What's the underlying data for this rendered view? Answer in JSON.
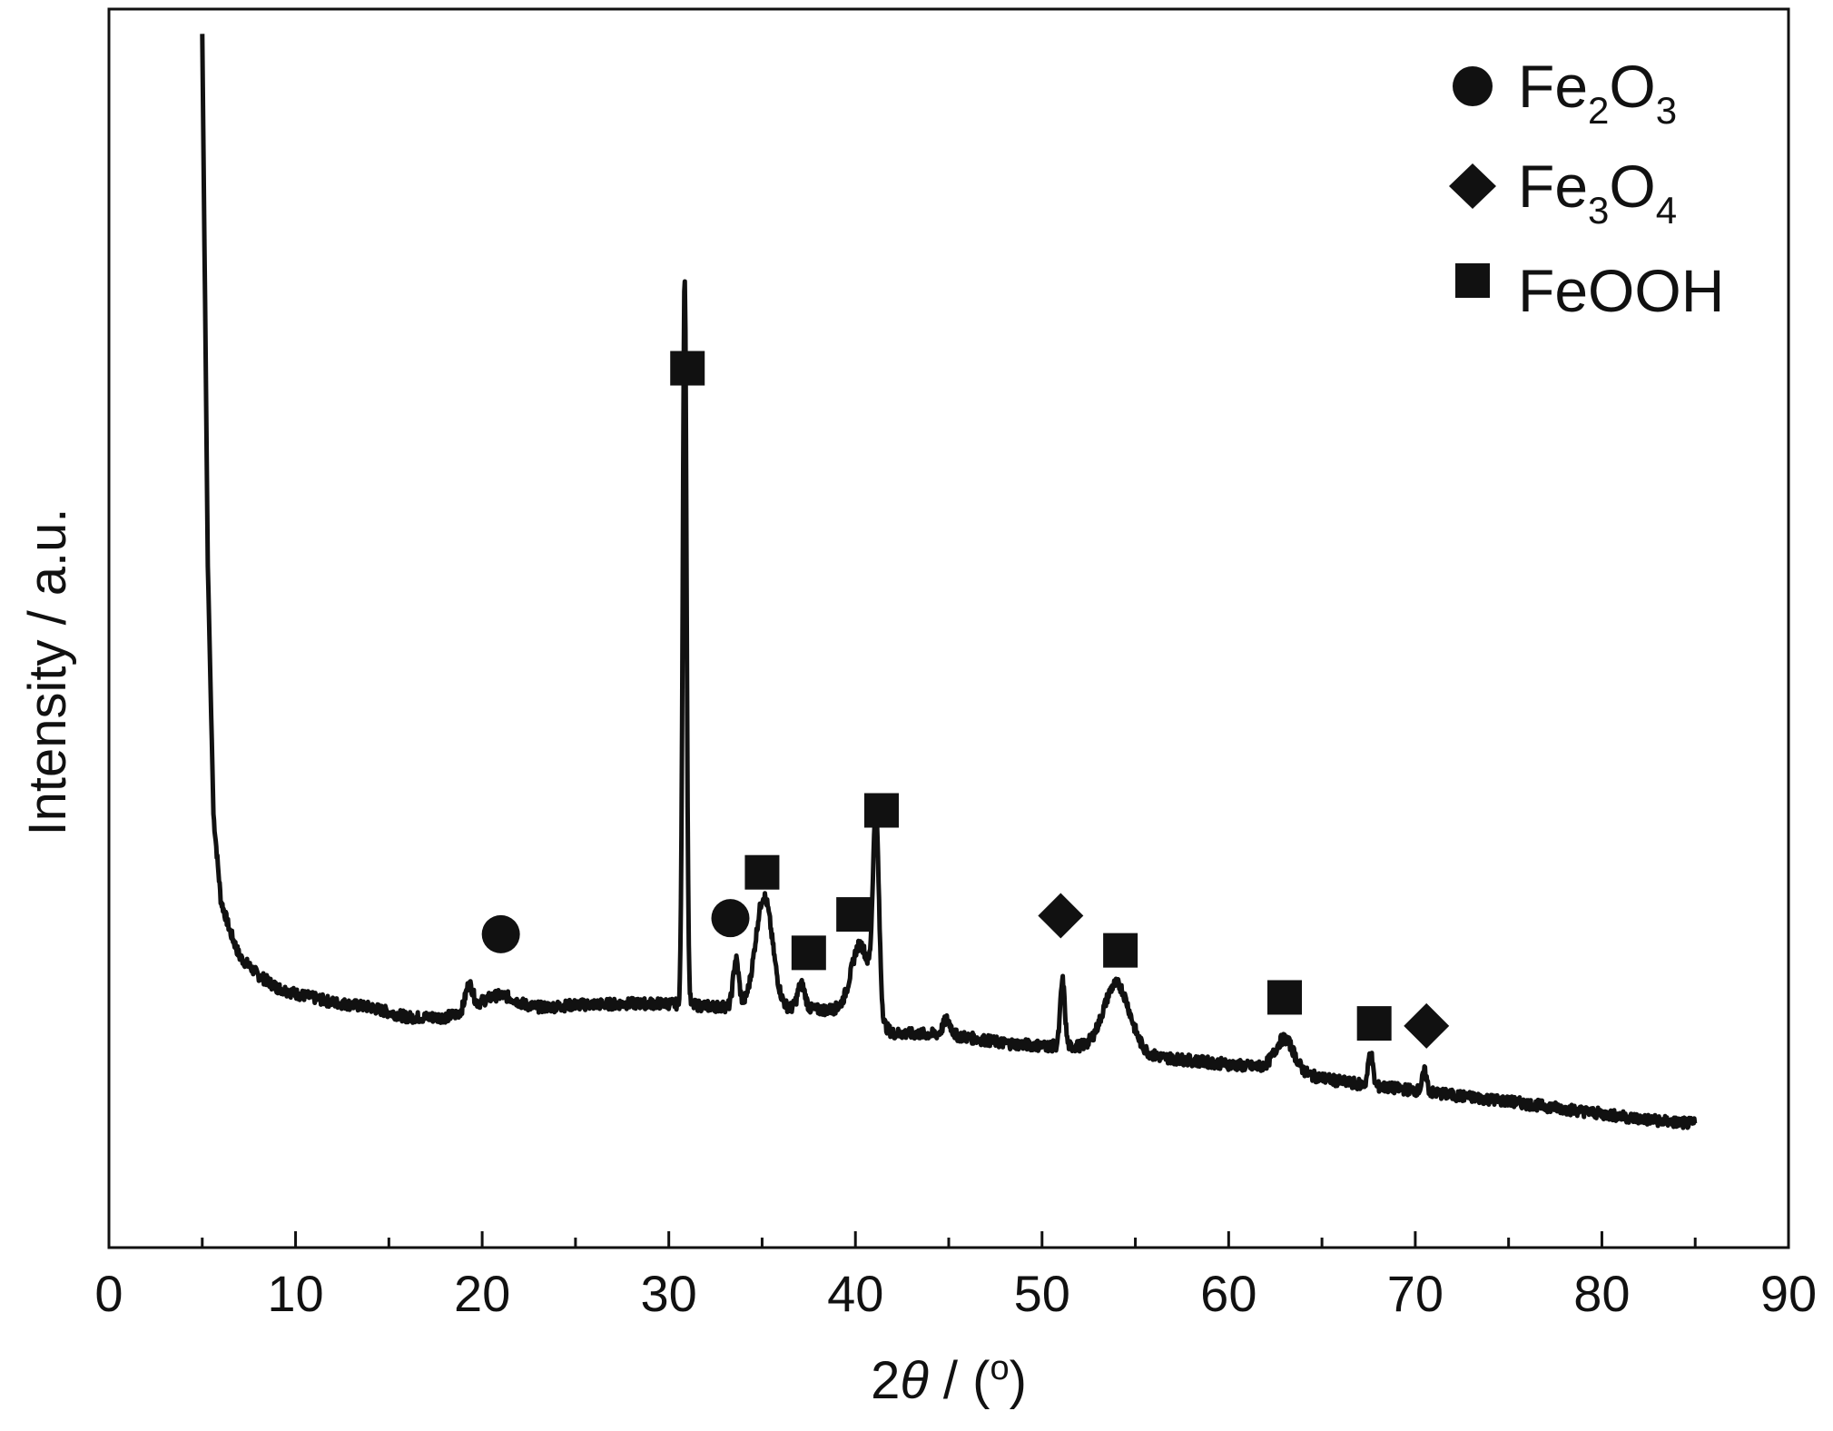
{
  "chart_data": {
    "type": "line",
    "xlabel": {
      "prefix": "2",
      "symbol": "θ",
      "suffix": " / (",
      "degree": "o",
      "close": ")"
    },
    "ylabel": "Intensity / a.u.",
    "xlim": [
      0,
      90
    ],
    "ylim": [
      0,
      100
    ],
    "x_ticks": [
      "0",
      "10",
      "20",
      "30",
      "40",
      "50",
      "60",
      "70",
      "80",
      "90"
    ],
    "grid": false,
    "legend_position": "top-right",
    "legend": [
      {
        "marker": "circle",
        "label_parts": [
          "Fe",
          "2",
          "O",
          "3"
        ]
      },
      {
        "marker": "diamond",
        "label_parts": [
          "Fe",
          "3",
          "O",
          "4"
        ]
      },
      {
        "marker": "square",
        "label_parts": [
          "FeOOH"
        ]
      }
    ],
    "series": [
      {
        "color": "#111111",
        "baseline": [
          [
            5.0,
            98
          ],
          [
            5.3,
            55
          ],
          [
            5.6,
            35
          ],
          [
            6.0,
            28
          ],
          [
            6.5,
            25.5
          ],
          [
            7.0,
            23.5
          ],
          [
            8.0,
            22.0
          ],
          [
            9.0,
            21.0
          ],
          [
            10.0,
            20.5
          ],
          [
            12.0,
            19.8
          ],
          [
            14.0,
            19.4
          ],
          [
            16.0,
            18.6
          ],
          [
            18.0,
            18.6
          ],
          [
            20.0,
            19.3
          ],
          [
            22.0,
            19.2
          ],
          [
            25.0,
            19.6
          ],
          [
            28.0,
            19.7
          ],
          [
            30.0,
            19.7
          ],
          [
            32.0,
            19.5
          ],
          [
            34.0,
            19.4
          ],
          [
            36.0,
            19.3
          ],
          [
            38.0,
            19.2
          ],
          [
            40.0,
            19.2
          ],
          [
            42.0,
            17.3
          ],
          [
            45.0,
            17.2
          ],
          [
            48.0,
            16.5
          ],
          [
            50.0,
            16.3
          ],
          [
            52.0,
            16.2
          ],
          [
            55.0,
            15.6
          ],
          [
            58.0,
            15.1
          ],
          [
            60.0,
            14.8
          ],
          [
            62.0,
            14.5
          ],
          [
            64.0,
            14.0
          ],
          [
            66.0,
            13.4
          ],
          [
            68.0,
            13.0
          ],
          [
            70.0,
            12.7
          ],
          [
            72.0,
            12.3
          ],
          [
            75.0,
            11.8
          ],
          [
            78.0,
            11.2
          ],
          [
            80.0,
            10.8
          ],
          [
            82.0,
            10.4
          ],
          [
            84.0,
            10.1
          ],
          [
            85.0,
            10.0
          ]
        ],
        "peaks": [
          {
            "x": 19.3,
            "height": 2.0,
            "width": 0.2
          },
          {
            "x": 21.0,
            "height": 1.1,
            "width": 0.9
          },
          {
            "x": 30.85,
            "height": 59.0,
            "width": 0.1
          },
          {
            "x": 33.6,
            "height": 3.8,
            "width": 0.15
          },
          {
            "x": 35.1,
            "height": 9.0,
            "width": 0.45
          },
          {
            "x": 37.1,
            "height": 2.0,
            "width": 0.2
          },
          {
            "x": 40.3,
            "height": 5.5,
            "width": 0.5
          },
          {
            "x": 41.1,
            "height": 15.6,
            "width": 0.16
          },
          {
            "x": 44.9,
            "height": 1.2,
            "width": 0.2
          },
          {
            "x": 51.1,
            "height": 5.3,
            "width": 0.12
          },
          {
            "x": 54.0,
            "height": 5.5,
            "width": 0.7
          },
          {
            "x": 63.0,
            "height": 2.6,
            "width": 0.5
          },
          {
            "x": 67.6,
            "height": 2.7,
            "width": 0.12
          },
          {
            "x": 70.5,
            "height": 1.6,
            "width": 0.12
          }
        ]
      }
    ],
    "annotations": [
      {
        "marker": "square",
        "x": 31.0,
        "y": 71.0
      },
      {
        "marker": "circle",
        "x": 21.0,
        "y": 25.3
      },
      {
        "marker": "circle",
        "x": 33.3,
        "y": 26.6
      },
      {
        "marker": "square",
        "x": 35.0,
        "y": 30.3
      },
      {
        "marker": "square",
        "x": 37.5,
        "y": 23.8
      },
      {
        "marker": "square",
        "x": 39.9,
        "y": 26.9
      },
      {
        "marker": "square",
        "x": 41.4,
        "y": 35.3
      },
      {
        "marker": "diamond",
        "x": 51.0,
        "y": 26.8
      },
      {
        "marker": "square",
        "x": 54.2,
        "y": 24.0
      },
      {
        "marker": "square",
        "x": 63.0,
        "y": 20.2
      },
      {
        "marker": "square",
        "x": 67.8,
        "y": 18.1
      },
      {
        "marker": "diamond",
        "x": 70.6,
        "y": 17.9
      }
    ]
  }
}
